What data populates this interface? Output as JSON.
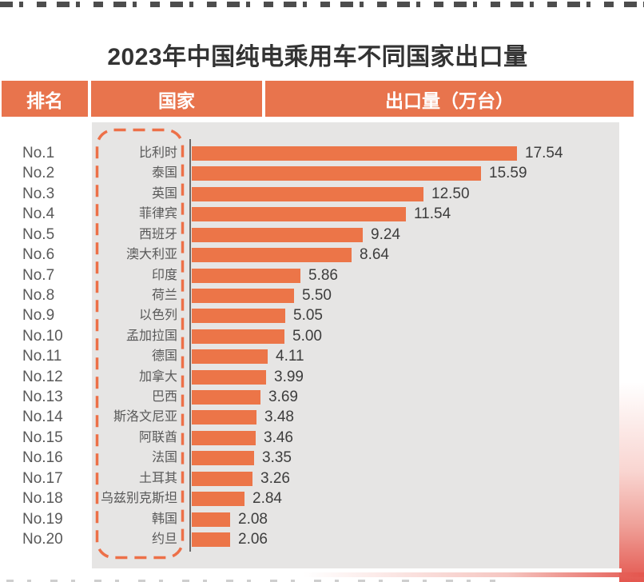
{
  "page": {
    "title": "2023年中国纯电乘用车不同国家出口量"
  },
  "table_header": {
    "rank": "排名",
    "country": "国家",
    "export": "出口量（万台）"
  },
  "chart_data": {
    "type": "bar",
    "orientation": "horizontal",
    "title": "2023年中国纯电乘用车不同国家出口量",
    "value_unit": "万台",
    "xlim": [
      0,
      17.54
    ],
    "grid": false,
    "legend": "none",
    "rows": [
      {
        "rank": "No.1",
        "country": "比利时",
        "value": 17.54,
        "label": "17.54"
      },
      {
        "rank": "No.2",
        "country": "泰国",
        "value": 15.59,
        "label": "15.59"
      },
      {
        "rank": "No.3",
        "country": "英国",
        "value": 12.5,
        "label": "12.50"
      },
      {
        "rank": "No.4",
        "country": "菲律宾",
        "value": 11.54,
        "label": "11.54"
      },
      {
        "rank": "No.5",
        "country": "西班牙",
        "value": 9.24,
        "label": "9.24"
      },
      {
        "rank": "No.6",
        "country": "澳大利亚",
        "value": 8.64,
        "label": "8.64"
      },
      {
        "rank": "No.7",
        "country": "印度",
        "value": 5.86,
        "label": "5.86"
      },
      {
        "rank": "No.8",
        "country": "荷兰",
        "value": 5.5,
        "label": "5.50"
      },
      {
        "rank": "No.9",
        "country": "以色列",
        "value": 5.05,
        "label": "5.05"
      },
      {
        "rank": "No.10",
        "country": "孟加拉国",
        "value": 5.0,
        "label": "5.00"
      },
      {
        "rank": "No.11",
        "country": "德国",
        "value": 4.11,
        "label": "4.11"
      },
      {
        "rank": "No.12",
        "country": "加拿大",
        "value": 3.99,
        "label": "3.99"
      },
      {
        "rank": "No.13",
        "country": "巴西",
        "value": 3.69,
        "label": "3.69"
      },
      {
        "rank": "No.14",
        "country": "斯洛文尼亚",
        "value": 3.48,
        "label": "3.48"
      },
      {
        "rank": "No.15",
        "country": "阿联酋",
        "value": 3.46,
        "label": "3.46"
      },
      {
        "rank": "No.16",
        "country": "法国",
        "value": 3.35,
        "label": "3.35"
      },
      {
        "rank": "No.17",
        "country": "土耳其",
        "value": 3.26,
        "label": "3.26"
      },
      {
        "rank": "No.18",
        "country": "乌兹别克斯坦",
        "value": 2.84,
        "label": "2.84"
      },
      {
        "rank": "No.19",
        "country": "韩国",
        "value": 2.08,
        "label": "2.08"
      },
      {
        "rank": "No.20",
        "country": "约旦",
        "value": 2.06,
        "label": "2.06"
      }
    ]
  },
  "colors": {
    "bar_orange": "#EC7548",
    "header_orange": "#E8744D",
    "panel_gray": "#E6E5E4",
    "dashed_border": "#ED7048",
    "axis_gray": "#6A6A6A",
    "rank_text": "#595959",
    "country_text": "#595959",
    "value_text": "#3D3D3D",
    "title_text": "#333333",
    "corner_red": "#E4574F"
  }
}
